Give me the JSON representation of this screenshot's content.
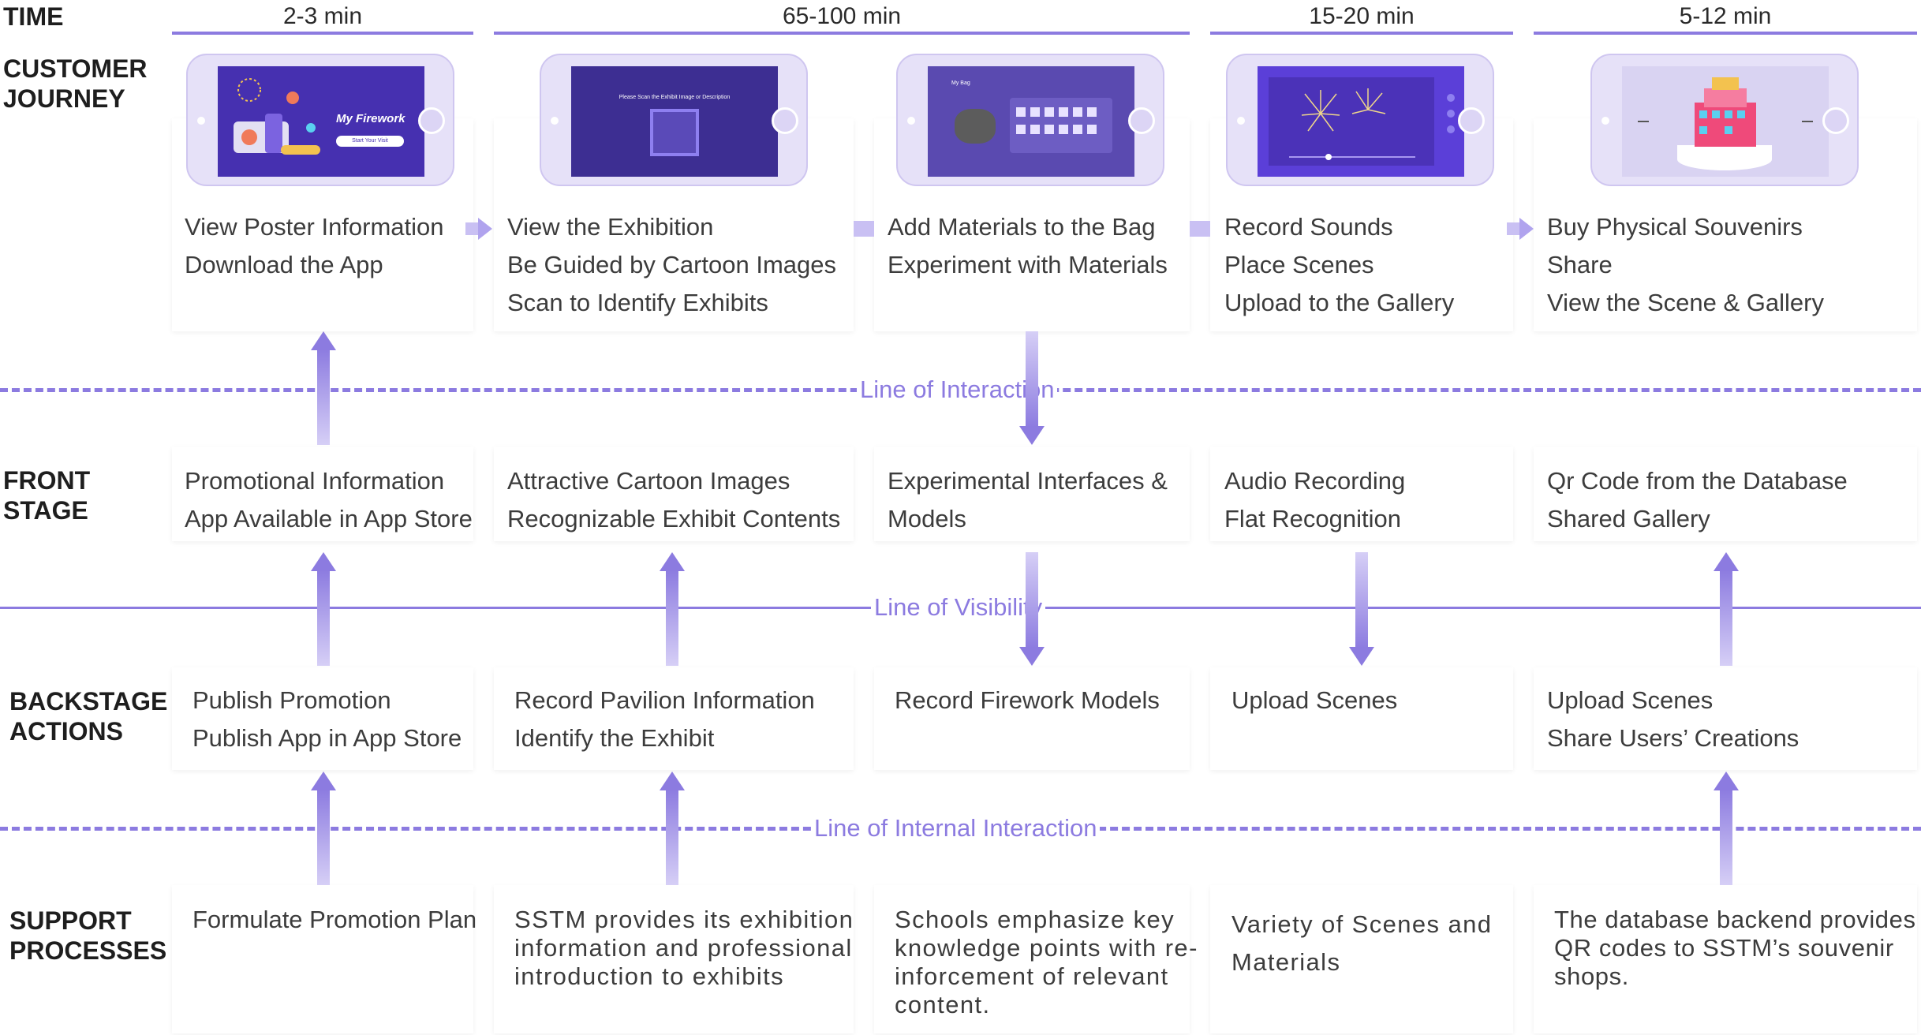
{
  "rows": {
    "time": "TIME",
    "customer_journey": [
      "CUSTOMER",
      "JOURNEY"
    ],
    "front_stage": [
      "FRONT",
      "STAGE"
    ],
    "backstage": [
      "BACKSTAGE",
      "ACTIONS"
    ],
    "support": [
      "SUPPORT",
      "PROCESSES"
    ]
  },
  "times": [
    "2-3 min",
    "65-100 min",
    "15-20 min",
    "5-12 min"
  ],
  "phones": {
    "p1_title": "My Firework",
    "p1_button": "Start Your Visit",
    "p2_text": "Please Scan the Exhibit Image or Description",
    "p3_title": "My Bag"
  },
  "journey": [
    [
      "View Poster Information",
      "Download the App"
    ],
    [
      "View the Exhibition",
      "Be Guided by Cartoon Images",
      "Scan to Identify Exhibits"
    ],
    [
      "Add Materials to the Bag",
      "Experiment with Materials"
    ],
    [
      "Record Sounds",
      "Place Scenes",
      "Upload to the Gallery"
    ],
    [
      "Buy Physical Souvenirs",
      "Share",
      "View the Scene & Gallery"
    ]
  ],
  "front": [
    [
      "Promotional Information",
      "App Available in App Store"
    ],
    [
      "Attractive Cartoon Images",
      "Recognizable Exhibit Contents"
    ],
    [
      "Experimental Interfaces &",
      "Models"
    ],
    [
      "Audio Recording",
      "Flat Recognition"
    ],
    [
      "Qr Code from the Database",
      "Shared Gallery"
    ]
  ],
  "backstage": [
    [
      "Publish Promotion",
      "Publish App in App Store"
    ],
    [
      "Record Pavilion Information",
      "Identify the Exhibit"
    ],
    [
      "Record Firework Models"
    ],
    [
      "Upload Scenes"
    ],
    [
      "Upload Scenes",
      "Share Users’ Creations"
    ]
  ],
  "support": [
    [
      "Formulate Promotion Plan"
    ],
    [
      "SSTM provides its exhibition",
      "information and professional",
      "introduction to exhibits"
    ],
    [
      "Schools emphasize key",
      "knowledge points with re-",
      "inforcement of relevant",
      "content."
    ],
    [
      "Variety of Scenes and",
      "Materials"
    ],
    [
      "The database backend provides",
      "QR codes to SSTM’s souvenir",
      "shops."
    ]
  ],
  "lines": {
    "interaction": "Line of Interaction",
    "visibility": "Line of Visibility",
    "internal": "Line of Internal Interaction"
  },
  "colors": {
    "accent": "#8c7be0",
    "arrow": "#9a89e6",
    "screen": "#4a36b0"
  }
}
